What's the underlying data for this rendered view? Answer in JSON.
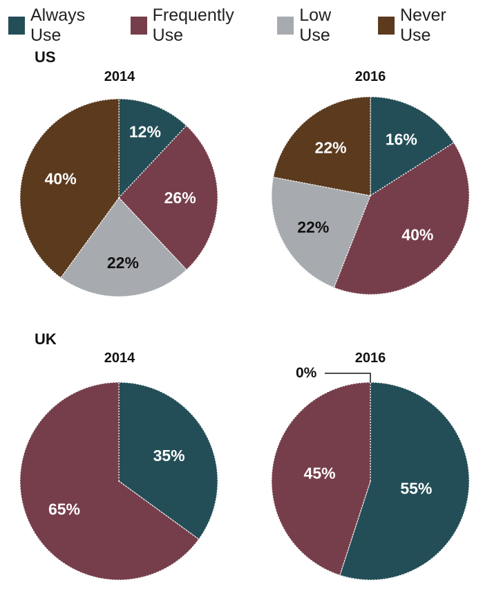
{
  "legend": [
    {
      "label": "Always Use",
      "color": "#234e57"
    },
    {
      "label": "Frequently Use",
      "color": "#763e4b"
    },
    {
      "label": "Low Use",
      "color": "#a7aaae"
    },
    {
      "label": "Never Use",
      "color": "#5b3a1e"
    }
  ],
  "chart_data": [
    {
      "type": "pie",
      "title": "2014",
      "group": "US",
      "categories": [
        "Always Use",
        "Frequently Use",
        "Low Use",
        "Never Use"
      ],
      "values": [
        12,
        26,
        22,
        40
      ],
      "labels": [
        "12%",
        "26%",
        "22%",
        "40%"
      ]
    },
    {
      "type": "pie",
      "title": "2016",
      "group": "US",
      "categories": [
        "Always Use",
        "Frequently Use",
        "Low Use",
        "Never Use"
      ],
      "values": [
        16,
        40,
        22,
        22
      ],
      "labels": [
        "16%",
        "40%",
        "22%",
        "22%"
      ]
    },
    {
      "type": "pie",
      "title": "2014",
      "group": "UK",
      "categories": [
        "Always Use",
        "Frequently Use"
      ],
      "values": [
        35,
        65
      ],
      "labels": [
        "35%",
        "65%"
      ]
    },
    {
      "type": "pie",
      "title": "2016",
      "group": "UK",
      "categories": [
        "Always Use",
        "Frequently Use",
        "Never Use"
      ],
      "values": [
        55,
        45,
        0
      ],
      "labels": [
        "55%",
        "45%",
        "0%"
      ]
    }
  ],
  "groups": {
    "us": "US",
    "uk": "UK"
  },
  "years": {
    "us_2014": "2014",
    "us_2016": "2016",
    "uk_2014": "2014",
    "uk_2016": "2016"
  },
  "zero_note": "0%"
}
